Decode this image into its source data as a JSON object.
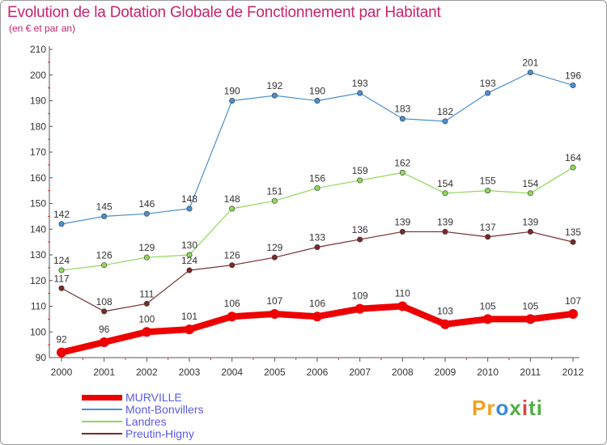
{
  "header": {
    "title": "Evolution de la Dotation Globale de Fonctionnement par Habitant",
    "subtitle": "(en € et par an)"
  },
  "logo": {
    "text": "Proxiti"
  },
  "chart_data": {
    "type": "line",
    "x": [
      "2000",
      "2001",
      "2002",
      "2003",
      "2004",
      "2005",
      "2006",
      "2007",
      "2008",
      "2009",
      "2010",
      "2011",
      "2012"
    ],
    "ylim": [
      90,
      210
    ],
    "yticks": [
      90,
      100,
      110,
      120,
      130,
      140,
      150,
      160,
      170,
      180,
      190,
      200,
      210
    ],
    "grid": false,
    "legend_placement": "bottom-left",
    "series": [
      {
        "name": "MURVILLE",
        "color": "#ee0000",
        "values": [
          92,
          96,
          100,
          101,
          106,
          107,
          106,
          109,
          110,
          103,
          105,
          105,
          107
        ],
        "labels": [
          "92",
          "96",
          "100",
          "101",
          "106",
          "107",
          "106",
          "109",
          "110",
          "103",
          "105",
          "105",
          "107"
        ]
      },
      {
        "name": "Mont-Bonvillers",
        "color": "#4a90d0",
        "values": [
          142,
          145,
          146,
          148,
          190,
          192,
          190,
          193,
          183,
          182,
          193,
          201,
          196
        ],
        "labels": [
          "142",
          "145",
          "146",
          "148",
          "190",
          "192",
          "190",
          "193",
          "183",
          "182",
          "193",
          "201",
          "196"
        ]
      },
      {
        "name": "Landres",
        "color": "#8ed85a",
        "values": [
          124,
          126,
          129,
          130,
          148,
          151,
          156,
          159,
          162,
          154,
          155,
          154,
          164
        ],
        "labels": [
          "124",
          "126",
          "129",
          "130",
          "148",
          "151",
          "156",
          "159",
          "162",
          "154",
          "155",
          "154",
          "164"
        ]
      },
      {
        "name": "Preutin-Higny",
        "color": "#7a2a2a",
        "values": [
          117,
          108,
          111,
          124,
          126,
          129,
          133,
          136,
          139,
          139,
          137,
          139,
          135
        ],
        "labels": [
          "117",
          "108",
          "111",
          "124",
          "126",
          "129",
          "133",
          "136",
          "139",
          "139",
          "137",
          "139",
          "135"
        ]
      }
    ]
  }
}
